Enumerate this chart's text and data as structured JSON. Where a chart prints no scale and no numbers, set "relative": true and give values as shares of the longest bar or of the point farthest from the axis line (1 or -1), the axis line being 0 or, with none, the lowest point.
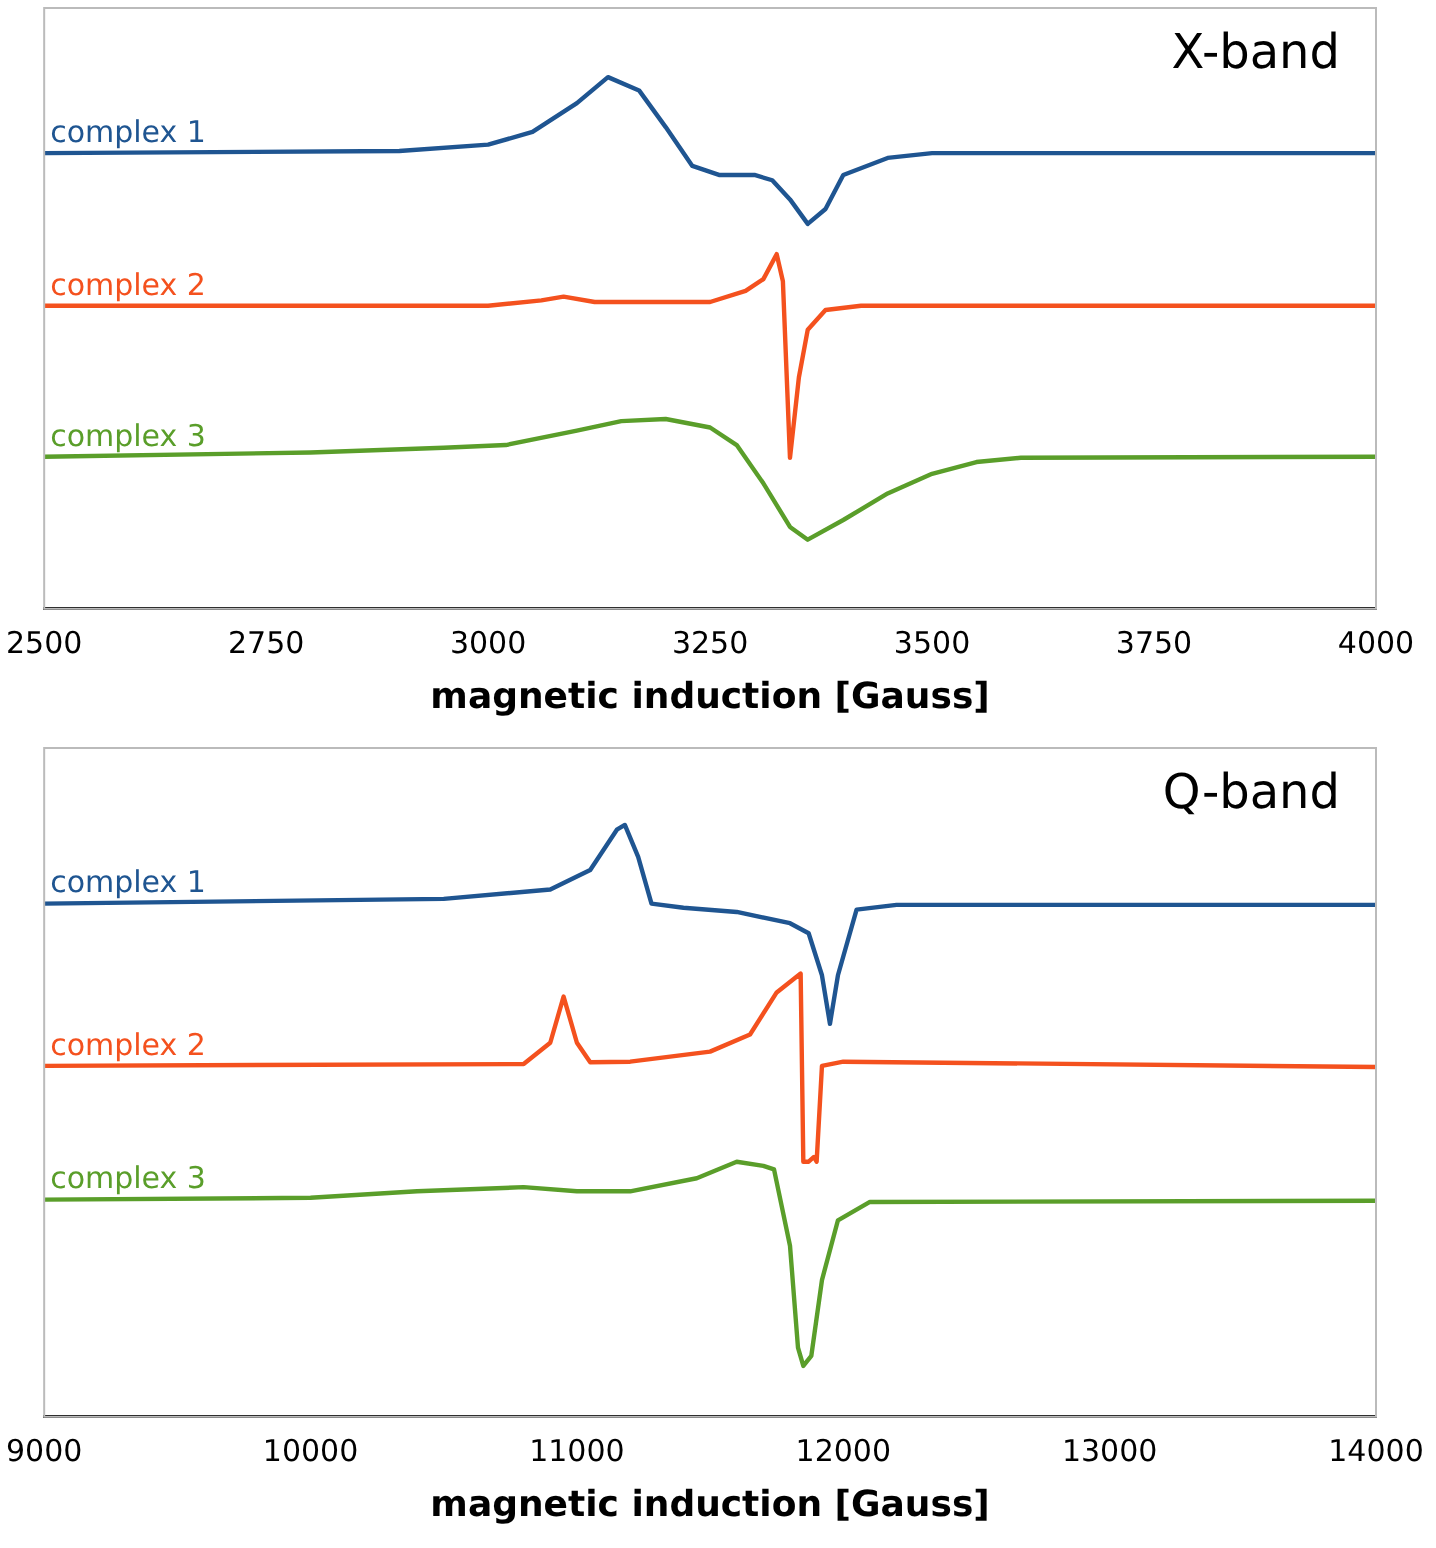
{
  "chart_data": [
    {
      "type": "line",
      "title": "X-band",
      "xlabel": "magnetic induction [Gauss]",
      "relative": true,
      "grid": false,
      "legend": false,
      "marker": "none",
      "line_style": "solid",
      "xlim": [
        2500,
        4000
      ],
      "xticks": [
        2500,
        2750,
        3000,
        3250,
        3500,
        3750,
        4000
      ],
      "series": [
        {
          "name": "complex 1",
          "color": "#1f5591",
          "x": [
            2500,
            2900,
            3000,
            3050,
            3100,
            3135,
            3170,
            3200,
            3230,
            3260,
            3300,
            3320,
            3340,
            3360,
            3380,
            3400,
            3450,
            3500,
            4000
          ],
          "values": [
            0.857,
            0.861,
            0.873,
            0.897,
            0.951,
            1.0,
            0.975,
            0.906,
            0.833,
            0.816,
            0.816,
            0.806,
            0.77,
            0.724,
            0.752,
            0.816,
            0.848,
            0.857,
            0.857
          ]
        },
        {
          "name": "complex 2",
          "color": "#f4511e",
          "x": [
            2500,
            3000,
            3060,
            3085,
            3120,
            3200,
            3250,
            3290,
            3310,
            3325,
            3332,
            3340,
            3350,
            3360,
            3380,
            3420,
            4000
          ],
          "values": [
            0.57,
            0.57,
            0.58,
            0.587,
            0.577,
            0.577,
            0.577,
            0.598,
            0.62,
            0.667,
            0.616,
            0.284,
            0.435,
            0.525,
            0.562,
            0.57,
            0.57
          ]
        },
        {
          "name": "complex 3",
          "color": "#5a9e2a",
          "x": [
            2500,
            2800,
            2950,
            3020,
            3100,
            3150,
            3200,
            3250,
            3280,
            3310,
            3340,
            3360,
            3400,
            3450,
            3500,
            3550,
            3600,
            4000
          ],
          "values": [
            0.286,
            0.294,
            0.303,
            0.308,
            0.335,
            0.353,
            0.357,
            0.341,
            0.308,
            0.236,
            0.154,
            0.13,
            0.167,
            0.217,
            0.254,
            0.276,
            0.284,
            0.286
          ]
        }
      ]
    },
    {
      "type": "line",
      "title": "Q-band",
      "xlabel": "magnetic induction [Gauss]",
      "relative": true,
      "grid": false,
      "legend": false,
      "marker": "none",
      "line_style": "solid",
      "xlim": [
        9000,
        14000
      ],
      "xticks": [
        9000,
        10000,
        11000,
        12000,
        13000,
        14000
      ],
      "series": [
        {
          "name": "complex 1",
          "color": "#1f5591",
          "x": [
            9000,
            10500,
            10900,
            11050,
            11150,
            11180,
            11230,
            11280,
            11400,
            11600,
            11800,
            11870,
            11920,
            11950,
            11980,
            12050,
            12200,
            14000
          ],
          "values": [
            0.867,
            0.875,
            0.891,
            0.924,
            0.992,
            1.0,
            0.946,
            0.867,
            0.86,
            0.853,
            0.834,
            0.817,
            0.746,
            0.664,
            0.746,
            0.857,
            0.865,
            0.865
          ]
        },
        {
          "name": "complex 2",
          "color": "#f4511e",
          "x": [
            9000,
            10800,
            10900,
            10950,
            11000,
            11050,
            11200,
            11500,
            11650,
            11750,
            11840,
            11850,
            11870,
            11890,
            11900,
            11920,
            12000,
            14000
          ],
          "values": [
            0.593,
            0.596,
            0.632,
            0.71,
            0.632,
            0.599,
            0.6,
            0.617,
            0.646,
            0.717,
            0.749,
            0.431,
            0.431,
            0.439,
            0.431,
            0.593,
            0.6,
            0.591
          ]
        },
        {
          "name": "complex 3",
          "color": "#5a9e2a",
          "x": [
            9000,
            10000,
            10400,
            10800,
            11000,
            11200,
            11450,
            11600,
            11700,
            11740,
            11800,
            11830,
            11850,
            11880,
            11920,
            11980,
            12100,
            14000
          ],
          "values": [
            0.367,
            0.37,
            0.381,
            0.388,
            0.381,
            0.381,
            0.403,
            0.431,
            0.424,
            0.418,
            0.289,
            0.117,
            0.086,
            0.103,
            0.231,
            0.332,
            0.363,
            0.365
          ]
        }
      ]
    }
  ]
}
